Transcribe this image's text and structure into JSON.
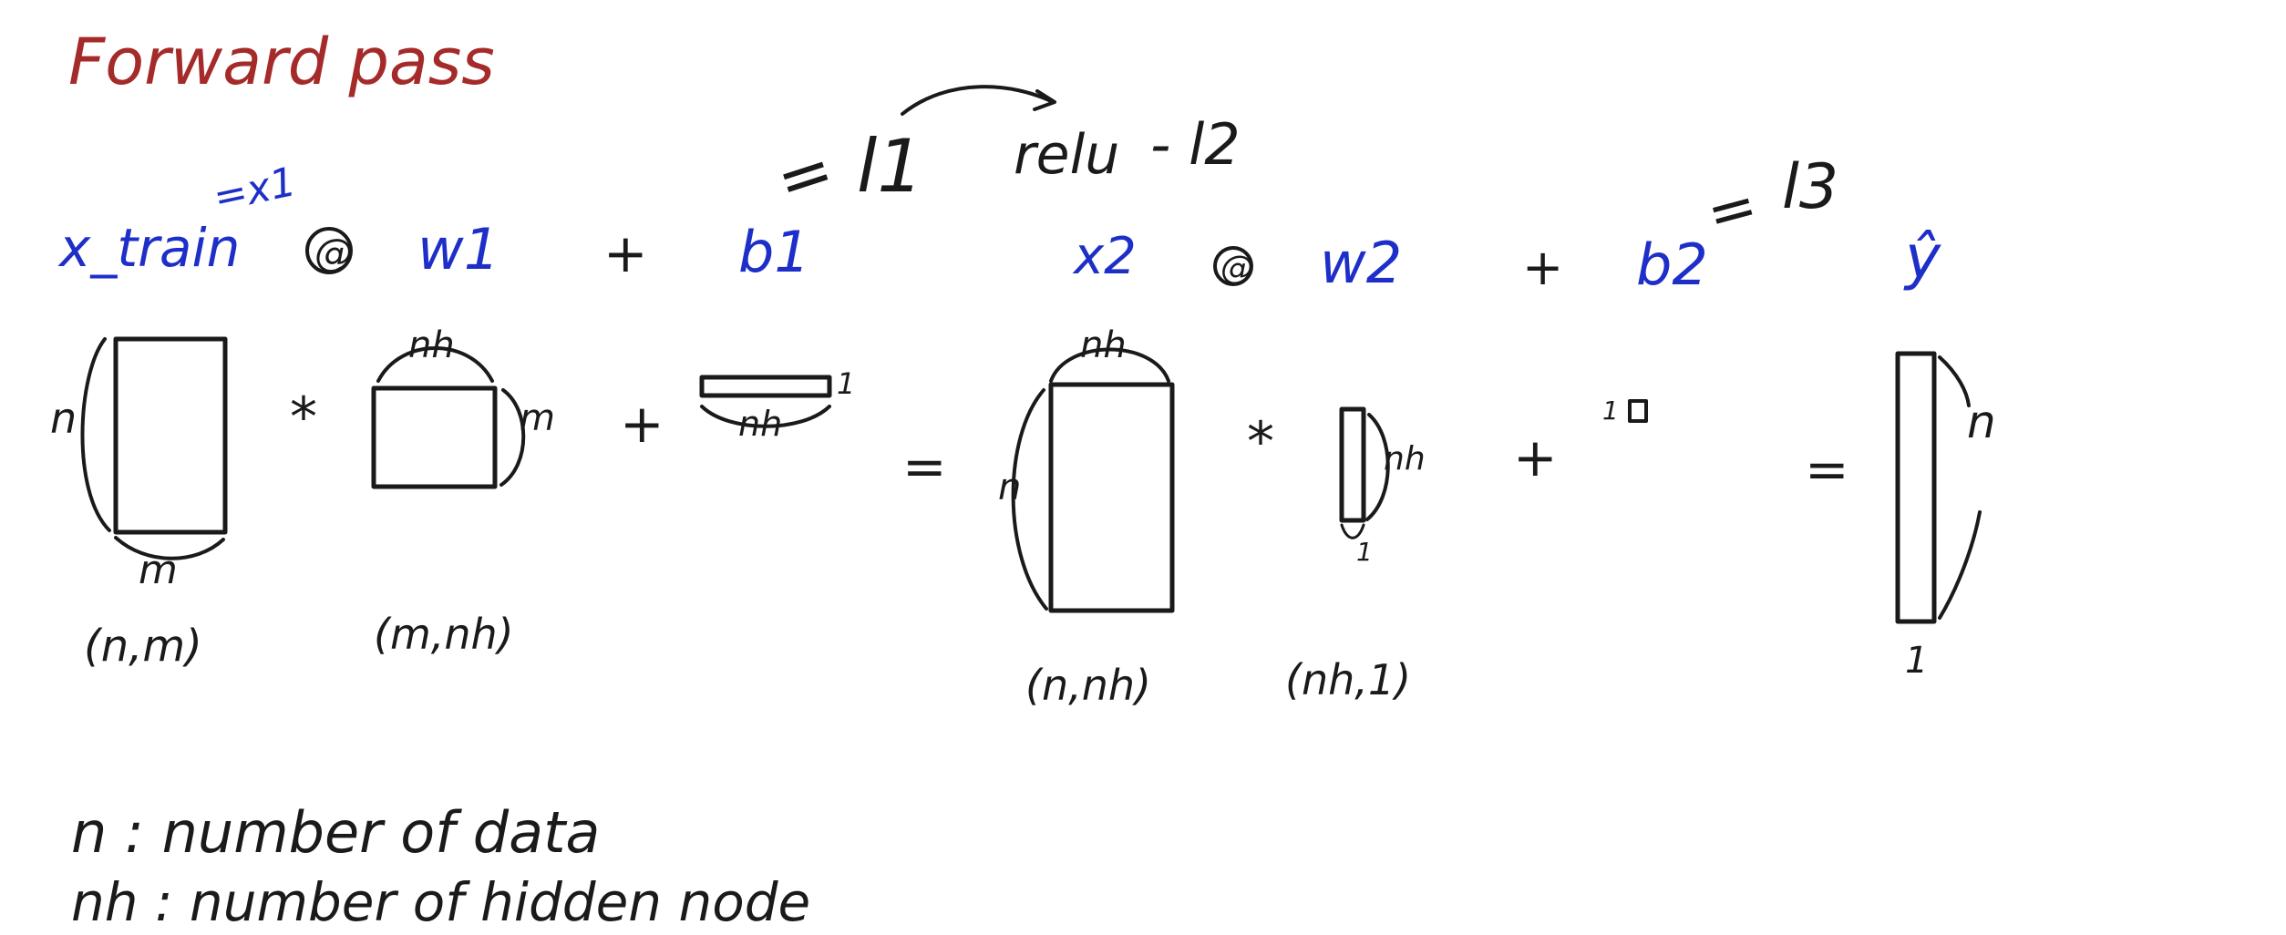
{
  "title": "Forward pass",
  "colors": {
    "title": "#a52a2a",
    "blue": "#1e2fc9",
    "black": "#1a1a1a"
  },
  "layer1": {
    "x_label": "x_train",
    "x_alias": "=x1",
    "matmul": "@",
    "w_label": "w1",
    "plus": "+",
    "b_label": "b1",
    "result_eq": "=",
    "result": "l1",
    "activation": "relu",
    "activation_out": "- l2"
  },
  "layer2": {
    "x_label": "x2",
    "matmul": "@",
    "w_label": "w2",
    "plus": "+",
    "b_label": "b2",
    "result_eq": "=",
    "result": "l3",
    "output": "ŷ"
  },
  "shapes": {
    "x_train": {
      "rows": "n",
      "cols": "m",
      "shape": "(n,m)"
    },
    "w1": {
      "rows": "m",
      "cols": "nh",
      "shape": "(m,nh)"
    },
    "b1": {
      "rows": "1",
      "cols": "nh"
    },
    "x2": {
      "rows": "n",
      "cols": "nh",
      "shape": "(n,nh)"
    },
    "w2": {
      "rows": "nh",
      "cols": "1",
      "shape": "(nh,1)"
    },
    "b2": {
      "size": "1"
    },
    "y_hat": {
      "rows": "n",
      "cols": "1"
    }
  },
  "ops": {
    "mul1": "*",
    "plus1": "+",
    "eq1": "=",
    "mul2": "*",
    "plus2": "+",
    "eq2": "="
  },
  "legend": [
    "n : number of data",
    "nh : number of hidden node"
  ]
}
